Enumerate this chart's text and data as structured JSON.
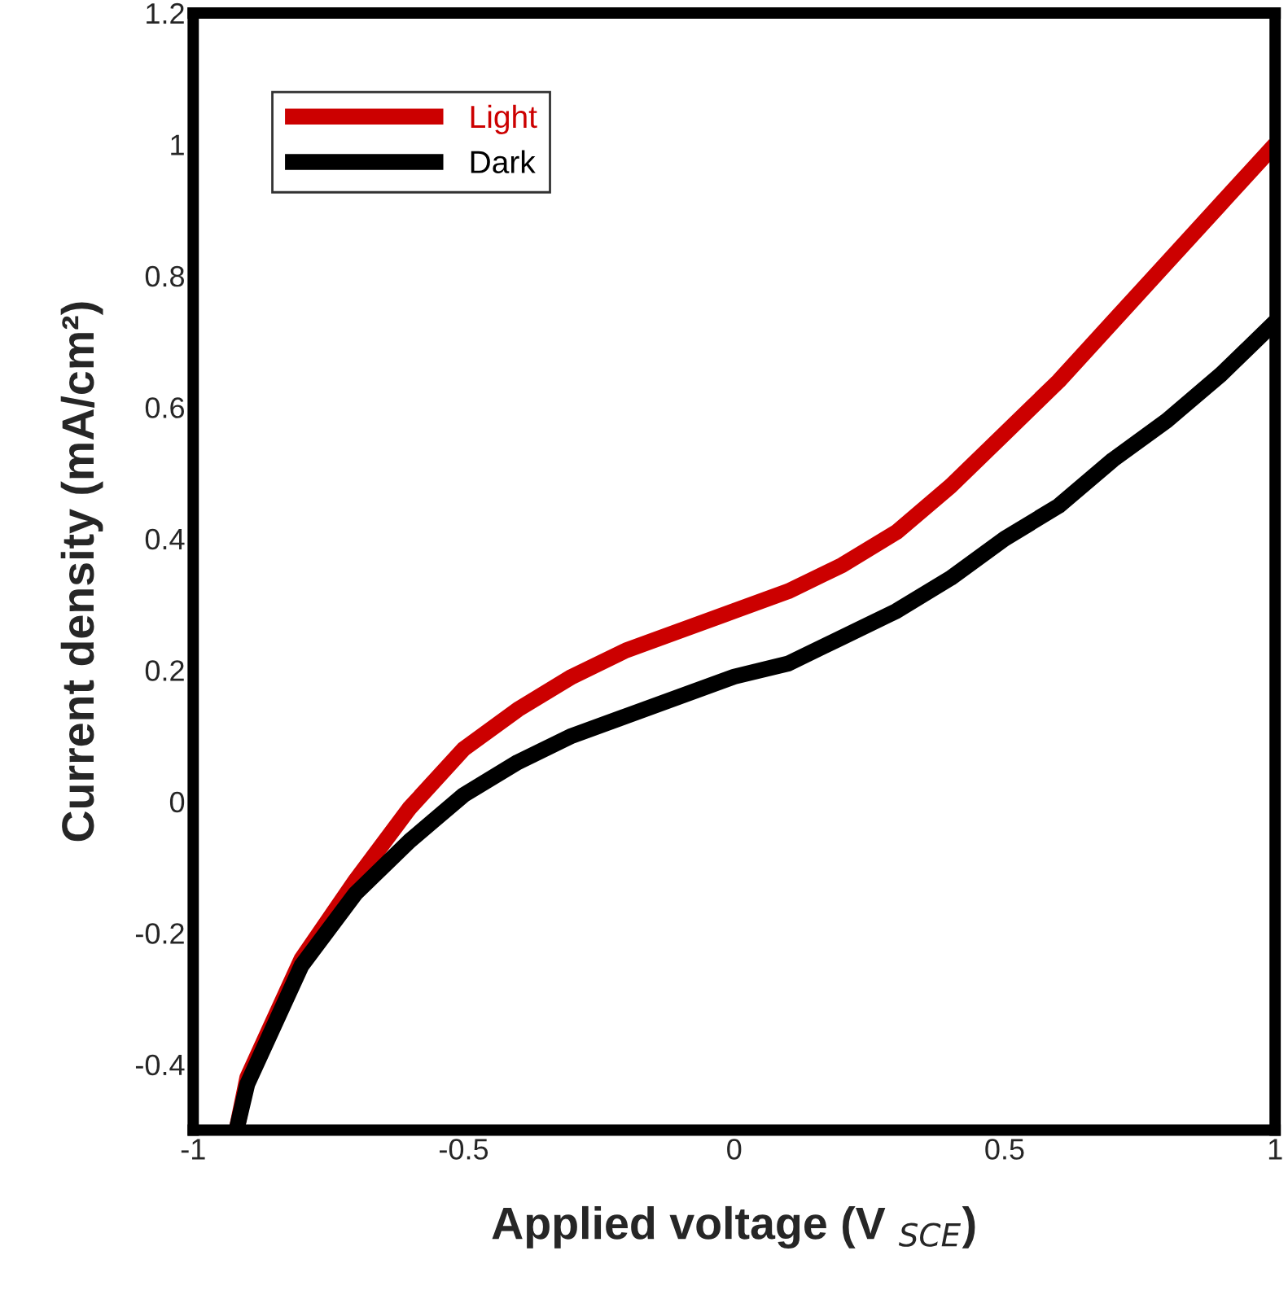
{
  "chart_data": {
    "type": "line",
    "xlabel": "Applied voltage (V $_{SCE}$)",
    "ylabel": "Current density (mA/cm²)",
    "xlim": [
      -1,
      1
    ],
    "xticks": [
      {
        "value": -1,
        "label": "-1"
      },
      {
        "value": -0.5,
        "label": "-0.5"
      },
      0,
      0.5,
      1
    ],
    "ylim": [
      -0.5,
      1.2
    ],
    "yticks": [
      {
        "value": -0.4,
        "label": "-0.4"
      },
      {
        "value": -0.2,
        "label": "-0.2"
      },
      0,
      0.2,
      0.4,
      0.6,
      0.8,
      1,
      1.2
    ],
    "x": [
      -0.92,
      -0.9,
      -0.8,
      -0.7,
      -0.6,
      -0.5,
      -0.4,
      -0.3,
      -0.2,
      -0.1,
      0,
      0.1,
      0.2,
      0.3,
      0.4,
      0.5,
      0.6,
      0.7,
      0.8,
      0.9,
      1.0
    ],
    "series": [
      {
        "name": "Light",
        "color": "#cc0000",
        "values": [
          -0.5,
          -0.42,
          -0.24,
          -0.12,
          -0.01,
          0.08,
          0.14,
          0.19,
          0.23,
          0.26,
          0.29,
          0.32,
          0.36,
          0.41,
          0.48,
          0.56,
          0.64,
          0.73,
          0.82,
          0.91,
          1.0
        ]
      },
      {
        "name": "Dark",
        "color": "#000000",
        "values": [
          -0.5,
          -0.43,
          -0.25,
          -0.14,
          -0.06,
          0.01,
          0.06,
          0.1,
          0.13,
          0.16,
          0.19,
          0.21,
          0.25,
          0.29,
          0.34,
          0.4,
          0.45,
          0.52,
          0.58,
          0.65,
          0.73
        ]
      }
    ],
    "legend": "top left",
    "grid": false,
    "marker": "none",
    "line_style": "solid"
  }
}
